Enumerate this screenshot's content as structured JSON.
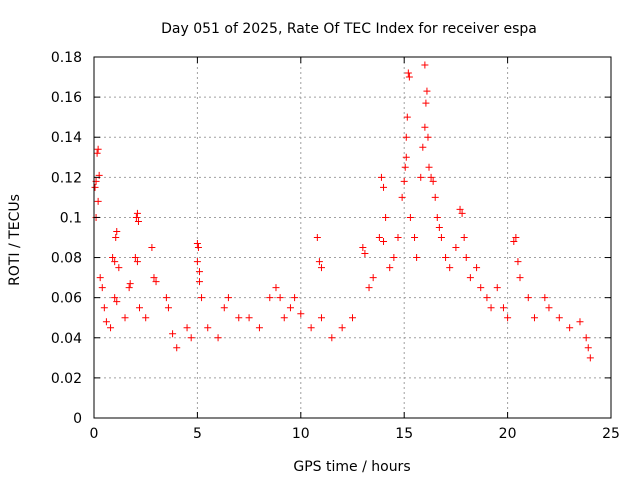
{
  "chart_data": {
    "type": "scatter",
    "title": "Day 051 of 2025, Rate Of TEC Index for receiver espa",
    "xlabel": "GPS time / hours",
    "ylabel": "ROTI / TECUs",
    "xlim": [
      0,
      25
    ],
    "ylim": [
      0,
      0.18
    ],
    "xticks": [
      0,
      5,
      10,
      15,
      20,
      25
    ],
    "xtick_labels": [
      "0",
      "5",
      "10",
      "15",
      "20",
      "25"
    ],
    "yticks": [
      0,
      0.02,
      0.04,
      0.06,
      0.08,
      0.1,
      0.12,
      0.14,
      0.16,
      0.18
    ],
    "ytick_labels": [
      "0",
      "0.02",
      "0.04",
      "0.06",
      "0.08",
      "0.1",
      "0.12",
      "0.14",
      "0.16",
      "0.18"
    ],
    "grid": true,
    "marker": "+",
    "marker_color": "#ff0000",
    "series": [
      {
        "values": [
          [
            0.05,
            0.115
          ],
          [
            0.1,
            0.118
          ],
          [
            0.15,
            0.132
          ],
          [
            0.2,
            0.134
          ],
          [
            0.1,
            0.1
          ],
          [
            0.2,
            0.108
          ],
          [
            0.25,
            0.121
          ],
          [
            0.3,
            0.07
          ],
          [
            0.4,
            0.065
          ],
          [
            0.5,
            0.055
          ],
          [
            0.6,
            0.048
          ],
          [
            0.8,
            0.045
          ],
          [
            0.9,
            0.08
          ],
          [
            1.0,
            0.078
          ],
          [
            1.05,
            0.09
          ],
          [
            1.1,
            0.093
          ],
          [
            1.2,
            0.075
          ],
          [
            1.0,
            0.06
          ],
          [
            1.1,
            0.058
          ],
          [
            1.5,
            0.05
          ],
          [
            1.7,
            0.065
          ],
          [
            1.75,
            0.067
          ],
          [
            2.05,
            0.1
          ],
          [
            2.1,
            0.102
          ],
          [
            2.15,
            0.098
          ],
          [
            2.0,
            0.08
          ],
          [
            2.1,
            0.078
          ],
          [
            2.2,
            0.055
          ],
          [
            2.5,
            0.05
          ],
          [
            2.8,
            0.085
          ],
          [
            2.9,
            0.07
          ],
          [
            3.0,
            0.068
          ],
          [
            3.5,
            0.06
          ],
          [
            3.6,
            0.055
          ],
          [
            3.8,
            0.042
          ],
          [
            4.0,
            0.035
          ],
          [
            4.5,
            0.045
          ],
          [
            4.7,
            0.04
          ],
          [
            5.0,
            0.087
          ],
          [
            5.05,
            0.085
          ],
          [
            5.0,
            0.078
          ],
          [
            5.1,
            0.073
          ],
          [
            5.1,
            0.068
          ],
          [
            5.2,
            0.06
          ],
          [
            5.5,
            0.045
          ],
          [
            6.0,
            0.04
          ],
          [
            6.3,
            0.055
          ],
          [
            6.5,
            0.06
          ],
          [
            7.0,
            0.05
          ],
          [
            7.5,
            0.05
          ],
          [
            8.0,
            0.045
          ],
          [
            8.5,
            0.06
          ],
          [
            8.8,
            0.065
          ],
          [
            9.0,
            0.06
          ],
          [
            9.2,
            0.05
          ],
          [
            9.5,
            0.055
          ],
          [
            9.7,
            0.06
          ],
          [
            10.0,
            0.052
          ],
          [
            10.5,
            0.045
          ],
          [
            10.8,
            0.09
          ],
          [
            10.9,
            0.078
          ],
          [
            11.0,
            0.075
          ],
          [
            11.0,
            0.05
          ],
          [
            11.5,
            0.04
          ],
          [
            12.0,
            0.045
          ],
          [
            12.5,
            0.05
          ],
          [
            13.0,
            0.085
          ],
          [
            13.1,
            0.082
          ],
          [
            13.3,
            0.065
          ],
          [
            13.5,
            0.07
          ],
          [
            13.8,
            0.09
          ],
          [
            13.9,
            0.12
          ],
          [
            14.0,
            0.115
          ],
          [
            14.1,
            0.1
          ],
          [
            14.0,
            0.088
          ],
          [
            14.3,
            0.075
          ],
          [
            14.5,
            0.08
          ],
          [
            14.7,
            0.09
          ],
          [
            14.9,
            0.11
          ],
          [
            15.0,
            0.118
          ],
          [
            15.05,
            0.125
          ],
          [
            15.1,
            0.14
          ],
          [
            15.15,
            0.15
          ],
          [
            15.2,
            0.172
          ],
          [
            15.25,
            0.17
          ],
          [
            15.1,
            0.13
          ],
          [
            15.3,
            0.1
          ],
          [
            15.5,
            0.09
          ],
          [
            15.6,
            0.08
          ],
          [
            15.8,
            0.12
          ],
          [
            15.9,
            0.135
          ],
          [
            16.0,
            0.145
          ],
          [
            16.05,
            0.157
          ],
          [
            16.1,
            0.163
          ],
          [
            16.0,
            0.176
          ],
          [
            16.15,
            0.14
          ],
          [
            16.2,
            0.125
          ],
          [
            16.3,
            0.12
          ],
          [
            16.4,
            0.118
          ],
          [
            16.5,
            0.11
          ],
          [
            16.6,
            0.1
          ],
          [
            16.7,
            0.095
          ],
          [
            16.8,
            0.09
          ],
          [
            17.0,
            0.08
          ],
          [
            17.2,
            0.075
          ],
          [
            17.5,
            0.085
          ],
          [
            17.7,
            0.104
          ],
          [
            17.8,
            0.102
          ],
          [
            17.9,
            0.09
          ],
          [
            18.0,
            0.08
          ],
          [
            18.2,
            0.07
          ],
          [
            18.5,
            0.075
          ],
          [
            18.7,
            0.065
          ],
          [
            19.0,
            0.06
          ],
          [
            19.2,
            0.055
          ],
          [
            19.5,
            0.065
          ],
          [
            19.8,
            0.055
          ],
          [
            20.0,
            0.05
          ],
          [
            20.3,
            0.088
          ],
          [
            20.4,
            0.09
          ],
          [
            20.5,
            0.078
          ],
          [
            20.6,
            0.07
          ],
          [
            21.0,
            0.06
          ],
          [
            21.3,
            0.05
          ],
          [
            21.8,
            0.06
          ],
          [
            22.0,
            0.055
          ],
          [
            22.5,
            0.05
          ],
          [
            23.0,
            0.045
          ],
          [
            23.5,
            0.048
          ],
          [
            23.8,
            0.04
          ],
          [
            23.9,
            0.035
          ],
          [
            24.0,
            0.03
          ]
        ]
      }
    ]
  }
}
